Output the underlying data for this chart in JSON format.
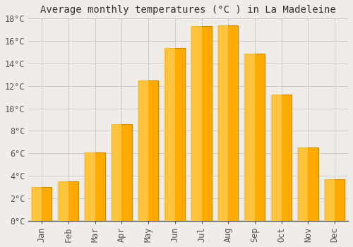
{
  "title": "Average monthly temperatures (°C ) in La Madeleine",
  "months": [
    "Jan",
    "Feb",
    "Mar",
    "Apr",
    "May",
    "Jun",
    "Jul",
    "Aug",
    "Sep",
    "Oct",
    "Nov",
    "Dec"
  ],
  "temperatures": [
    3.0,
    3.5,
    6.1,
    8.6,
    12.5,
    15.4,
    17.3,
    17.4,
    14.9,
    11.2,
    6.5,
    3.7
  ],
  "bar_color": "#FFAA00",
  "bar_edge_color": "#CC8800",
  "background_color": "#F0EDE8",
  "plot_bg_color": "#F0EDE8",
  "grid_color": "#CCCCCC",
  "ylim": [
    0,
    18
  ],
  "yticks": [
    0,
    2,
    4,
    6,
    8,
    10,
    12,
    14,
    16,
    18
  ],
  "title_fontsize": 10,
  "tick_fontsize": 8.5,
  "font_family": "monospace",
  "bar_width": 0.75
}
